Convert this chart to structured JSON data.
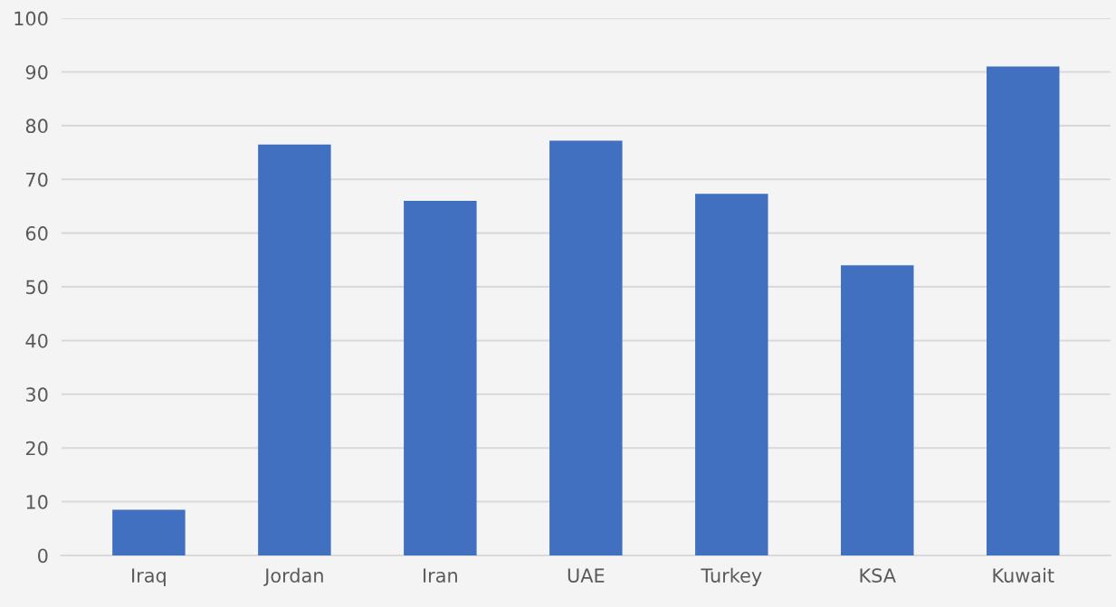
{
  "chart_data": {
    "type": "bar",
    "categories": [
      "Iraq",
      "Jordan",
      "Iran",
      "UAE",
      "Turkey",
      "KSA",
      "Kuwait"
    ],
    "values": [
      8.5,
      76.5,
      66,
      77.2,
      67.3,
      54,
      91
    ],
    "color": "#4270c0",
    "ylim": [
      0,
      100
    ],
    "yticks": [
      0,
      10,
      20,
      30,
      40,
      50,
      60,
      70,
      80,
      90,
      100
    ],
    "grid": "y"
  }
}
